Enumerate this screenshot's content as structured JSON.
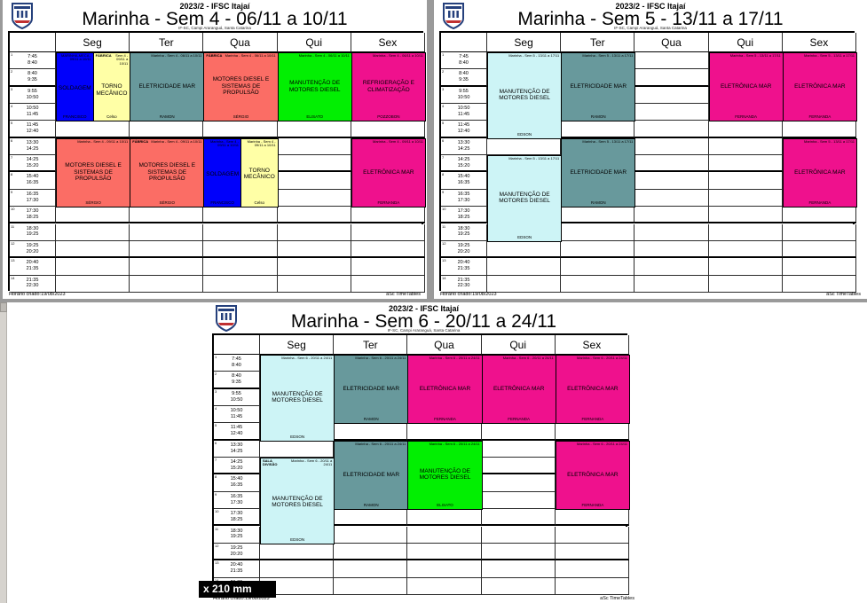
{
  "window": {
    "size_tooltip": "x 210 mm"
  },
  "times": [
    {
      "n": "1",
      "start": "7:45",
      "end": "8:40"
    },
    {
      "n": "2",
      "start": "8:40",
      "end": "9:35"
    },
    {
      "n": "3",
      "start": "9:55",
      "end": "10:50"
    },
    {
      "n": "4",
      "start": "10:50",
      "end": "11:45"
    },
    {
      "n": "5",
      "start": "11:45",
      "end": "12:40"
    },
    {
      "n": "6",
      "start": "13:30",
      "end": "14:25"
    },
    {
      "n": "7",
      "start": "14:25",
      "end": "15:20"
    },
    {
      "n": "8",
      "start": "15:40",
      "end": "16:35"
    },
    {
      "n": "9",
      "start": "16:35",
      "end": "17:30"
    },
    {
      "n": "10",
      "start": "17:30",
      "end": "18:25"
    },
    {
      "n": "11",
      "start": "18:30",
      "end": "19:25"
    },
    {
      "n": "12",
      "start": "19:25",
      "end": "20:20"
    },
    {
      "n": "13",
      "start": "20:40",
      "end": "21:35"
    },
    {
      "n": "14",
      "start": "21:35",
      "end": "22:30"
    }
  ],
  "colors": {
    "blue": "#0000fb",
    "yellow": "#ffffa6",
    "teal": "#68999c",
    "red": "#fb6d65",
    "green": "#02ef02",
    "pink": "#ef118d",
    "cyan": "#cdf4f6"
  },
  "pages": [
    {
      "edition": "2023/2 - IFSC Itajaí",
      "title": "Marinha - Sem 4 - 06/11 a 10/11",
      "subtitle": "IF-SC, Campi Araranguá, Santa Catarina",
      "days": [
        "Seg",
        "Ter",
        "Qua",
        "Qui",
        "Sex"
      ],
      "footer_left": "Horário criado:19/08/2023",
      "footer_right": "aSc TimeTables",
      "blocks": [
        {
          "day": 0,
          "row_start": 1,
          "row_end": 4,
          "parts": [
            {
              "subject": "SOLDAGEM",
              "teacher": "FRANCISCO",
              "room": "",
              "info": "MARINHA-MECA - 09/11 a 10/11",
              "color": "blue"
            },
            {
              "subject": "TORNO MECÂNICO",
              "teacher": "Celso",
              "room": "FÁBRICA",
              "info": "Sem 4 - 09/11 a 10/11",
              "color": "yellow"
            }
          ]
        },
        {
          "day": 1,
          "row_start": 1,
          "row_end": 4,
          "parts": [
            {
              "subject": "ELETRICIDADE MAR",
              "teacher": "RAMON",
              "room": "",
              "info": "Marinha - Sem 4 - 06/11 a 10/11",
              "color": "teal"
            }
          ]
        },
        {
          "day": 2,
          "row_start": 1,
          "row_end": 4,
          "parts": [
            {
              "subject": "MOTORES DIESEL E SISTEMAS DE PROPULSÃO",
              "teacher": "SÉRGIO",
              "room": "FÁBRICA",
              "info": "Marinha - Sem 4 - 06/11 a 10/11",
              "color": "red"
            }
          ]
        },
        {
          "day": 3,
          "row_start": 1,
          "row_end": 4,
          "parts": [
            {
              "subject": "MANUTENÇÃO DE MOTORES DIESEL",
              "teacher": "ELISATO",
              "room": "",
              "info": "Marinha - Sem 4 - 06/11 a 10/11",
              "color": "green"
            }
          ]
        },
        {
          "day": 4,
          "row_start": 1,
          "row_end": 4,
          "parts": [
            {
              "subject": "REFRIGERAÇÃO E CLIMATIZAÇÃO",
              "teacher": "POZZOBON",
              "room": "",
              "info": "Marinha - Sem 4 - 06/11 a 10/11",
              "color": "pink"
            }
          ]
        },
        {
          "day": 0,
          "row_start": 6,
          "row_end": 9,
          "parts": [
            {
              "subject": "MOTORES DIESEL E SISTEMAS DE PROPULSÃO",
              "teacher": "SÉRGIO",
              "room": "",
              "info": "Marinha - Sem 4 - 09/11 a 10/11",
              "color": "red"
            }
          ]
        },
        {
          "day": 1,
          "row_start": 6,
          "row_end": 9,
          "parts": [
            {
              "subject": "MOTORES DIESEL E SISTEMAS DE PROPULSÃO",
              "teacher": "SÉRGIO",
              "room": "FÁBRICA",
              "info": "Marinha - Sem 4 - 09/11 a 10/11",
              "color": "red"
            }
          ]
        },
        {
          "day": 2,
          "row_start": 6,
          "row_end": 9,
          "parts": [
            {
              "subject": "SOLDAGEM",
              "teacher": "FRANCISCO",
              "room": "",
              "info": "Marinha - Sem 4 - 09/11 a 10/11",
              "color": "blue"
            },
            {
              "subject": "TORNO MECÂNICO",
              "teacher": "Celso",
              "room": "",
              "info": "Marinha - Sem 4 - 09/11 a 10/11",
              "color": "yellow"
            }
          ]
        },
        {
          "day": 4,
          "row_start": 6,
          "row_end": 9,
          "parts": [
            {
              "subject": "ELETRÔNICA MAR",
              "teacher": "FERNANDA",
              "room": "",
              "info": "Marinha - Sem 4 - 09/11 a 10/11",
              "color": "pink"
            }
          ]
        }
      ]
    },
    {
      "edition": "2023/2 - IFSC Itajaí",
      "title": "Marinha - Sem 5 - 13/11 a 17/11",
      "subtitle": "IF-SC, Campi Araranguá, Santa Catarina",
      "days": [
        "Seg",
        "Ter",
        "Qua",
        "Qui",
        "Sex"
      ],
      "footer_left": "Horário criado:19/08/2023",
      "footer_right": "aSc TimeTables",
      "blocks": [
        {
          "day": 0,
          "row_start": 1,
          "row_end": 5,
          "parts": [
            {
              "subject": "MANUTENÇÃO DE MOTORES DIESEL",
              "teacher": "EDSON",
              "room": "",
              "info": "Marinha - Sem 5 - 13/11 a 17/11",
              "color": "cyan"
            }
          ]
        },
        {
          "day": 1,
          "row_start": 1,
          "row_end": 4,
          "parts": [
            {
              "subject": "ELETRICIDADE MAR",
              "teacher": "RAMON",
              "room": "",
              "info": "Marinha - Sem 5 - 13/11 a 17/11",
              "color": "teal"
            }
          ]
        },
        {
          "day": 3,
          "row_start": 1,
          "row_end": 4,
          "parts": [
            {
              "subject": "ELETRÔNICA MAR",
              "teacher": "FERNANDA",
              "room": "",
              "info": "Marinha - Sem 5 - 13/11 a 17/11",
              "color": "pink"
            }
          ]
        },
        {
          "day": 4,
          "row_start": 1,
          "row_end": 4,
          "parts": [
            {
              "subject": "ELETRÔNICA MAR",
              "teacher": "FERNANDA",
              "room": "",
              "info": "Marinha - Sem 5 - 13/11 a 17/11",
              "color": "pink"
            }
          ]
        },
        {
          "day": 0,
          "row_start": 7,
          "row_end": 11,
          "parts": [
            {
              "subject": "MANUTENÇÃO DE MOTORES DIESEL",
              "teacher": "EDSON",
              "room": "",
              "info": "Marinha - Sem 5 - 13/11 a 17/11",
              "color": "cyan"
            }
          ]
        },
        {
          "day": 1,
          "row_start": 6,
          "row_end": 9,
          "parts": [
            {
              "subject": "ELETRICIDADE MAR",
              "teacher": "RAMON",
              "room": "",
              "info": "Marinha - Sem 5 - 13/11 a 17/11",
              "color": "teal"
            }
          ]
        },
        {
          "day": 4,
          "row_start": 6,
          "row_end": 9,
          "parts": [
            {
              "subject": "ELETRÔNICA MAR",
              "teacher": "FERNANDA",
              "room": "",
              "info": "Marinha - Sem 5 - 13/11 a 17/11",
              "color": "pink"
            }
          ]
        }
      ]
    },
    {
      "edition": "2023/2 - IFSC Itajaí",
      "title": "Marinha - Sem 6 - 20/11 a 24/11",
      "subtitle": "IF-SC, Campi Araranguá, Santa Catarina",
      "days": [
        "Seg",
        "Ter",
        "Qua",
        "Qui",
        "Sex"
      ],
      "footer_left": "Horário criado:19/08/2023",
      "footer_right": "aSc TimeTables",
      "blocks": [
        {
          "day": 0,
          "row_start": 1,
          "row_end": 5,
          "parts": [
            {
              "subject": "MANUTENÇÃO DE MOTORES DIESEL",
              "teacher": "EDSON",
              "room": "",
              "info": "Marinha - Sem 6 - 20/11 a 24/11",
              "color": "cyan"
            }
          ]
        },
        {
          "day": 1,
          "row_start": 1,
          "row_end": 4,
          "parts": [
            {
              "subject": "ELETRICIDADE MAR",
              "teacher": "RAMON",
              "room": "",
              "info": "Marinha - Sem 6 - 20/11 a 24/11",
              "color": "teal"
            }
          ]
        },
        {
          "day": 2,
          "row_start": 1,
          "row_end": 4,
          "parts": [
            {
              "subject": "ELETRÔNICA MAR",
              "teacher": "FERNANDA",
              "room": "",
              "info": "Marinha - Sem 6 - 20/11 a 24/11",
              "color": "pink"
            }
          ]
        },
        {
          "day": 3,
          "row_start": 1,
          "row_end": 4,
          "parts": [
            {
              "subject": "ELETRÔNICA MAR",
              "teacher": "FERNANDA",
              "room": "",
              "info": "Marinha - Sem 6 - 20/11 a 24/11",
              "color": "pink"
            }
          ]
        },
        {
          "day": 4,
          "row_start": 1,
          "row_end": 4,
          "parts": [
            {
              "subject": "ELETRÔNICA MAR",
              "teacher": "FERNANDA",
              "room": "",
              "info": "Marinha - Sem 6 - 20/11 a 24/11",
              "color": "pink"
            }
          ]
        },
        {
          "day": 0,
          "row_start": 7,
          "row_end": 11,
          "parts": [
            {
              "subject": "MANUTENÇÃO DE MOTORES DIESEL",
              "teacher": "EDSON",
              "room": "SALA DIVISÃO",
              "info": "Marinha - Sem 6 - 20/11 a 24/11",
              "color": "cyan"
            }
          ]
        },
        {
          "day": 1,
          "row_start": 6,
          "row_end": 9,
          "parts": [
            {
              "subject": "ELETRICIDADE MAR",
              "teacher": "RAMON",
              "room": "",
              "info": "Marinha - Sem 6 - 20/11 a 24/11",
              "color": "teal"
            }
          ]
        },
        {
          "day": 2,
          "row_start": 6,
          "row_end": 9,
          "parts": [
            {
              "subject": "MANUTENÇÃO DE MOTORES DIESEL",
              "teacher": "ELISATO",
              "room": "",
              "info": "Marinha - Sem 6 - 20/11 a 24/11",
              "color": "green"
            }
          ]
        },
        {
          "day": 4,
          "row_start": 6,
          "row_end": 9,
          "parts": [
            {
              "subject": "ELETRÔNICA MAR",
              "teacher": "FERNANDA",
              "room": "",
              "info": "Marinha - Sem 6 - 20/11 a 24/11",
              "color": "pink"
            }
          ]
        }
      ]
    }
  ]
}
